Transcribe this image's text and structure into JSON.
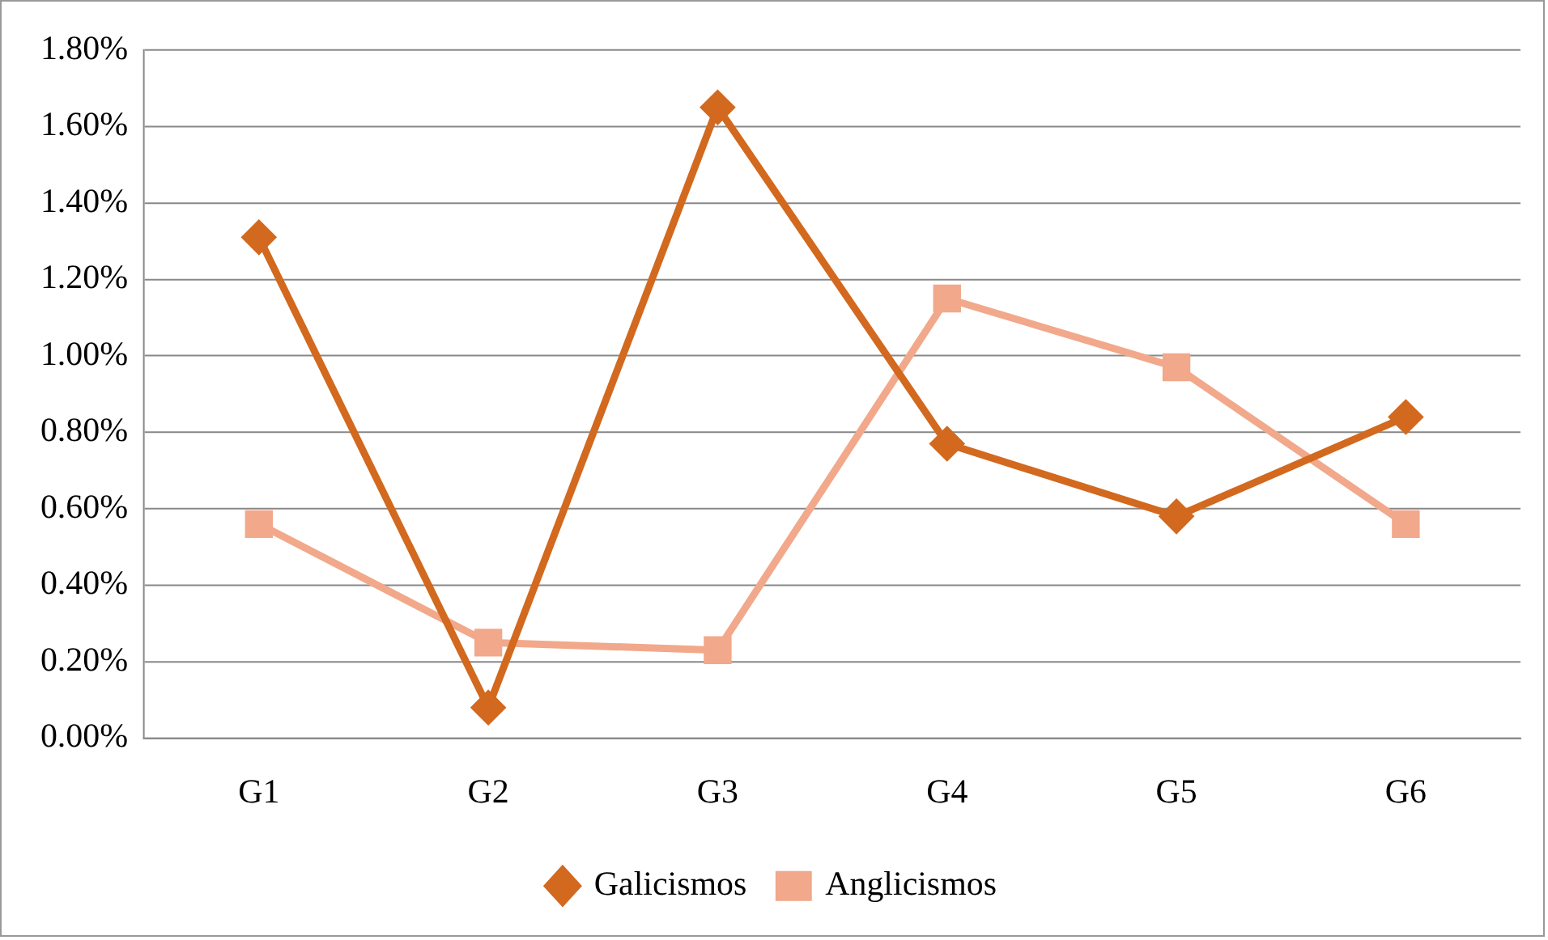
{
  "chart_data": {
    "type": "line",
    "categories": [
      "G1",
      "G2",
      "G3",
      "G4",
      "G5",
      "G6"
    ],
    "series": [
      {
        "name": "Galicismos",
        "color": "#d2691e",
        "marker": "diamond",
        "values": [
          1.31,
          0.08,
          1.65,
          0.77,
          0.58,
          0.84
        ]
      },
      {
        "name": "Anglicismos",
        "color": "#f2a88a",
        "marker": "square",
        "values": [
          0.56,
          0.25,
          0.23,
          1.15,
          0.97,
          0.56
        ]
      }
    ],
    "ylim": [
      0,
      1.8
    ],
    "yticks": [
      {
        "value": 0,
        "label": "0.00%"
      },
      {
        "value": 0.2,
        "label": "0.20%"
      },
      {
        "value": 0.4,
        "label": "0.40%"
      },
      {
        "value": 0.6,
        "label": "0.60%"
      },
      {
        "value": 0.8,
        "label": "0.80%"
      },
      {
        "value": 1.0,
        "label": "1.00%"
      },
      {
        "value": 1.2,
        "label": "1.20%"
      },
      {
        "value": 1.4,
        "label": "1.40%"
      },
      {
        "value": 1.6,
        "label": "1.60%"
      },
      {
        "value": 1.8,
        "label": "1.80%"
      }
    ],
    "grid": "y",
    "legend": "bottom",
    "line_style": "solid"
  }
}
